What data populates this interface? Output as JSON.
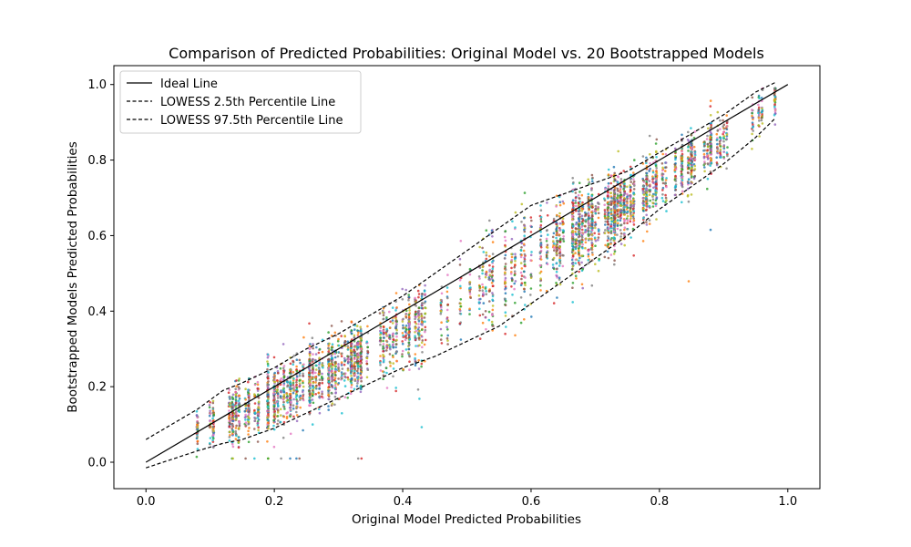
{
  "chart_data": {
    "type": "scatter",
    "title": "Comparison of Predicted Probabilities: Original Model vs. 20 Bootstrapped Models",
    "xlabel": "Original Model Predicted Probabilities",
    "ylabel": "Bootstrapped Models Predicted Probabilities",
    "xlim": [
      -0.05,
      1.05
    ],
    "ylim": [
      -0.07,
      1.05
    ],
    "xticks": [
      0.0,
      0.2,
      0.4,
      0.6,
      0.8,
      1.0
    ],
    "xtick_labels": [
      "0.0",
      "0.2",
      "0.4",
      "0.6",
      "0.8",
      "1.0"
    ],
    "yticks": [
      0.0,
      0.2,
      0.4,
      0.6,
      0.8,
      1.0
    ],
    "ytick_labels": [
      "0.0",
      "0.2",
      "0.4",
      "0.6",
      "0.8",
      "1.0"
    ],
    "grid": false,
    "legend_position": "top-left",
    "n_bootstrap_models": 20,
    "series_colors": [
      "#1f77b4",
      "#ff7f0e",
      "#2ca02c",
      "#d62728",
      "#9467bd",
      "#8c564b",
      "#e377c2",
      "#7f7f7f",
      "#bcbd22",
      "#17becf"
    ],
    "lines": [
      {
        "name": "Ideal Line",
        "style": "solid",
        "color": "#000000",
        "x": [
          0.0,
          1.0
        ],
        "y": [
          0.0,
          1.0
        ]
      },
      {
        "name": "LOWESS 2.5th Percentile Line",
        "style": "dashed",
        "color": "#000000",
        "x": [
          0.0,
          0.08,
          0.12,
          0.15,
          0.2,
          0.25,
          0.3,
          0.35,
          0.4,
          0.45,
          0.5,
          0.55,
          0.6,
          0.65,
          0.7,
          0.75,
          0.8,
          0.85,
          0.9,
          0.95,
          0.98
        ],
        "y": [
          -0.015,
          0.03,
          0.05,
          0.06,
          0.09,
          0.13,
          0.17,
          0.21,
          0.25,
          0.28,
          0.32,
          0.36,
          0.42,
          0.48,
          0.54,
          0.6,
          0.67,
          0.73,
          0.79,
          0.86,
          0.91
        ]
      },
      {
        "name": "LOWESS 97.5th Percentile Line",
        "style": "dashed",
        "color": "#000000",
        "x": [
          0.0,
          0.08,
          0.12,
          0.15,
          0.2,
          0.25,
          0.3,
          0.35,
          0.4,
          0.45,
          0.5,
          0.55,
          0.6,
          0.65,
          0.7,
          0.75,
          0.8,
          0.85,
          0.9,
          0.95,
          0.98
        ],
        "y": [
          0.06,
          0.14,
          0.19,
          0.21,
          0.25,
          0.3,
          0.34,
          0.39,
          0.44,
          0.5,
          0.56,
          0.62,
          0.68,
          0.71,
          0.74,
          0.77,
          0.82,
          0.87,
          0.92,
          0.98,
          1.005
        ]
      }
    ],
    "legend": [
      "Ideal Line",
      "LOWESS 2.5th Percentile Line",
      "LOWESS 97.5th Percentile Line"
    ]
  }
}
